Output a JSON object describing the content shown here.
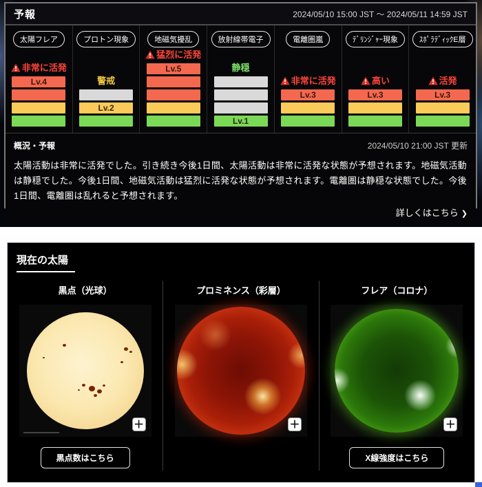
{
  "colors": {
    "bar_red": "#f3684f",
    "bar_yellow": "#fbcb5a",
    "bar_green": "#7cd957",
    "bar_gray": "#d9d9d9",
    "status_red": "#ff4438",
    "status_yellow": "#f2c63e",
    "status_green": "#7de069",
    "warn_triangle": "#e03226"
  },
  "forecast_card": {
    "title": "予報",
    "period": "2024/05/10 15:00 JST ～ 2024/05/11 14:59 JST",
    "panels": [
      {
        "key": "solar-flare",
        "label": "太陽フレア",
        "status": "非常に活発",
        "status_color": "red",
        "warning": true,
        "levels": [
          {
            "color": "red",
            "label": "Lv.4"
          },
          {
            "color": "red"
          },
          {
            "color": "yellow"
          },
          {
            "color": "green"
          }
        ]
      },
      {
        "key": "proton",
        "label": "プロトン現象",
        "status": "警戒",
        "status_color": "yellow",
        "warning": false,
        "levels": [
          {
            "color": "gray"
          },
          {
            "color": "yellow",
            "label": "Lv.2"
          },
          {
            "color": "green"
          }
        ]
      },
      {
        "key": "geomagnetic",
        "label": "地磁気擾乱",
        "status": "猛烈に活発",
        "status_color": "red",
        "warning": true,
        "levels": [
          {
            "color": "red",
            "label": "Lv.5"
          },
          {
            "color": "red"
          },
          {
            "color": "red"
          },
          {
            "color": "yellow"
          },
          {
            "color": "green"
          }
        ]
      },
      {
        "key": "radiation-belt",
        "label": "放射線帯電子",
        "status": "静穏",
        "status_color": "green",
        "warning": false,
        "levels": [
          {
            "color": "gray"
          },
          {
            "color": "gray"
          },
          {
            "color": "gray"
          },
          {
            "color": "green",
            "label": "Lv.1"
          }
        ]
      },
      {
        "key": "ionospheric-storm",
        "label": "電離圏嵐",
        "status": "非常に活発",
        "status_color": "red",
        "warning": true,
        "levels": [
          {
            "color": "red",
            "label": "Lv.3"
          },
          {
            "color": "yellow"
          },
          {
            "color": "green"
          }
        ]
      },
      {
        "key": "dellinger",
        "label": "ﾃﾞﾘﾝｼﾞｬｰ現象",
        "status": "高い",
        "status_color": "red",
        "warning": true,
        "levels": [
          {
            "color": "red",
            "label": "Lv.3"
          },
          {
            "color": "yellow"
          },
          {
            "color": "green"
          }
        ]
      },
      {
        "key": "sporadic-e",
        "label": "ｽﾎﾟﾗﾃﾞｨｯｸE層",
        "status": "活発",
        "status_color": "red",
        "warning": true,
        "levels": [
          {
            "color": "red",
            "label": "Lv.3"
          },
          {
            "color": "yellow"
          },
          {
            "color": "green"
          }
        ]
      }
    ],
    "summary": {
      "heading": "概況・予報",
      "updated": "2024/05/10 21:00 JST 更新",
      "body": "太陽活動は非常に活発でした。引き続き今後1日間、太陽活動は非常に活発な状態が予想されます。地磁気活動は静穏でした。今後1日間、地磁気活動は猛烈に活発な状態が予想されます。電離圏は静穏な状態でした。今後1日間、電離圏は乱れると予想されます。",
      "more_link": "詳しくはこちら",
      "more_chevron": "❯"
    }
  },
  "sun_card": {
    "title": "現在の太陽",
    "zoom_glyph": "＋",
    "columns": [
      {
        "key": "sunspot",
        "label": "黒点（光球）",
        "button": "黒点数はこちら"
      },
      {
        "key": "prominence",
        "label": "プロミネンス（彩層）",
        "button": null
      },
      {
        "key": "corona",
        "label": "フレア（コロナ）",
        "button": "X線強度はこちら"
      }
    ]
  }
}
